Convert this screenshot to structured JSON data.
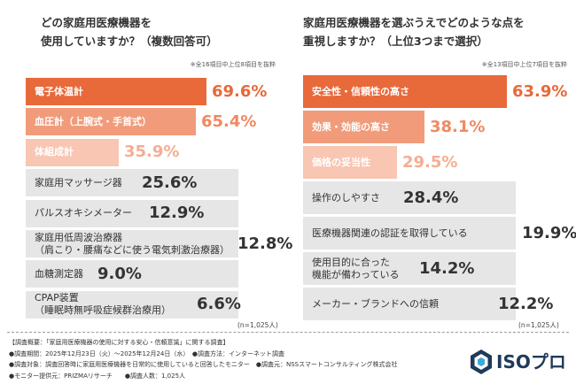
{
  "left": {
    "title_line1": "どの家庭用医療機器を",
    "title_line2": "使用していますか？（複数回答可）",
    "note": "※全16項目中上位8項目を抜粋",
    "n_label": "(n=1,025人)"
  },
  "right": {
    "title_line1": "家庭用医療機器を選ぶうえでどのような点を",
    "title_line2": "重視しますか？（上位3つまで選択）",
    "note": "※全13項目中上位7項目を抜粋",
    "n_label": "(n=1,025人)"
  },
  "chart_data": [
    {
      "type": "bar",
      "orientation": "horizontal",
      "categories": [
        [
          "電子体温計"
        ],
        [
          "血圧計（上腕式・手首式）"
        ],
        [
          "体組成計"
        ],
        [
          "家庭用マッサージ器"
        ],
        [
          "パルスオキシメーター"
        ],
        [
          "家庭用低周波治療器",
          "（肩こり・腰痛などに使う電気刺激治療器）"
        ],
        [
          "血糖測定器"
        ],
        [
          "CPAP装置",
          "（睡眠時無呼吸症候群治療用）"
        ]
      ],
      "values": [
        69.6,
        65.4,
        35.9,
        25.6,
        12.9,
        12.8,
        9.0,
        6.6
      ],
      "value_labels": [
        "69.6%",
        "65.4%",
        "35.9%",
        "25.6%",
        "12.9%",
        "12.8%",
        "9.0%",
        "6.6%"
      ],
      "unit": "%",
      "xlim": [
        0,
        100
      ]
    },
    {
      "type": "bar",
      "orientation": "horizontal",
      "categories": [
        [
          "安全性・信頼性の高さ"
        ],
        [
          "効果・効能の高さ"
        ],
        [
          "価格の妥当性"
        ],
        [
          "操作のしやすさ"
        ],
        [
          "医療機器関連の認証を取得している"
        ],
        [
          "使用目的に合った",
          "機能が備わっている"
        ],
        [
          "メーカー・ブランドへの信頼"
        ]
      ],
      "values": [
        63.9,
        38.1,
        29.5,
        28.4,
        19.9,
        14.2,
        12.2
      ],
      "value_labels": [
        "63.9%",
        "38.1%",
        "29.5%",
        "28.4%",
        "19.9%",
        "14.2%",
        "12.2%"
      ],
      "unit": "%",
      "xlim": [
        0,
        100
      ]
    }
  ],
  "colors": {
    "rank1_bar": "#e8693a",
    "rank2_bar": "#f19b7a",
    "rank3_bar": "#f8c6b3",
    "other_bar": "#e6e6e6",
    "rank1_value": "#e8693a",
    "rank2_value": "#ef8a62",
    "rank3_value": "#f5ad92",
    "other_value": "#333333"
  },
  "footer": {
    "line1": "【調査概要：「家庭用医療機器の使用に対する安心・信頼意識」に関する調査】",
    "line2": "●調査期間：2025年12月23日（火）～2025年12月24日（水）　●調査方法：インターネット調査",
    "line3": "●調査対象：調査回答時に家庭用医療機器を日常的に使用していると回答したモニター　●調査元：NSSスマートコンサルティング株式会社",
    "line4": "●モニター提供元：PRIZMAリサーチ　　●調査人数：1,025人"
  },
  "logo": {
    "text": "ISOプロ",
    "icon": "hexagon-logo-icon"
  }
}
